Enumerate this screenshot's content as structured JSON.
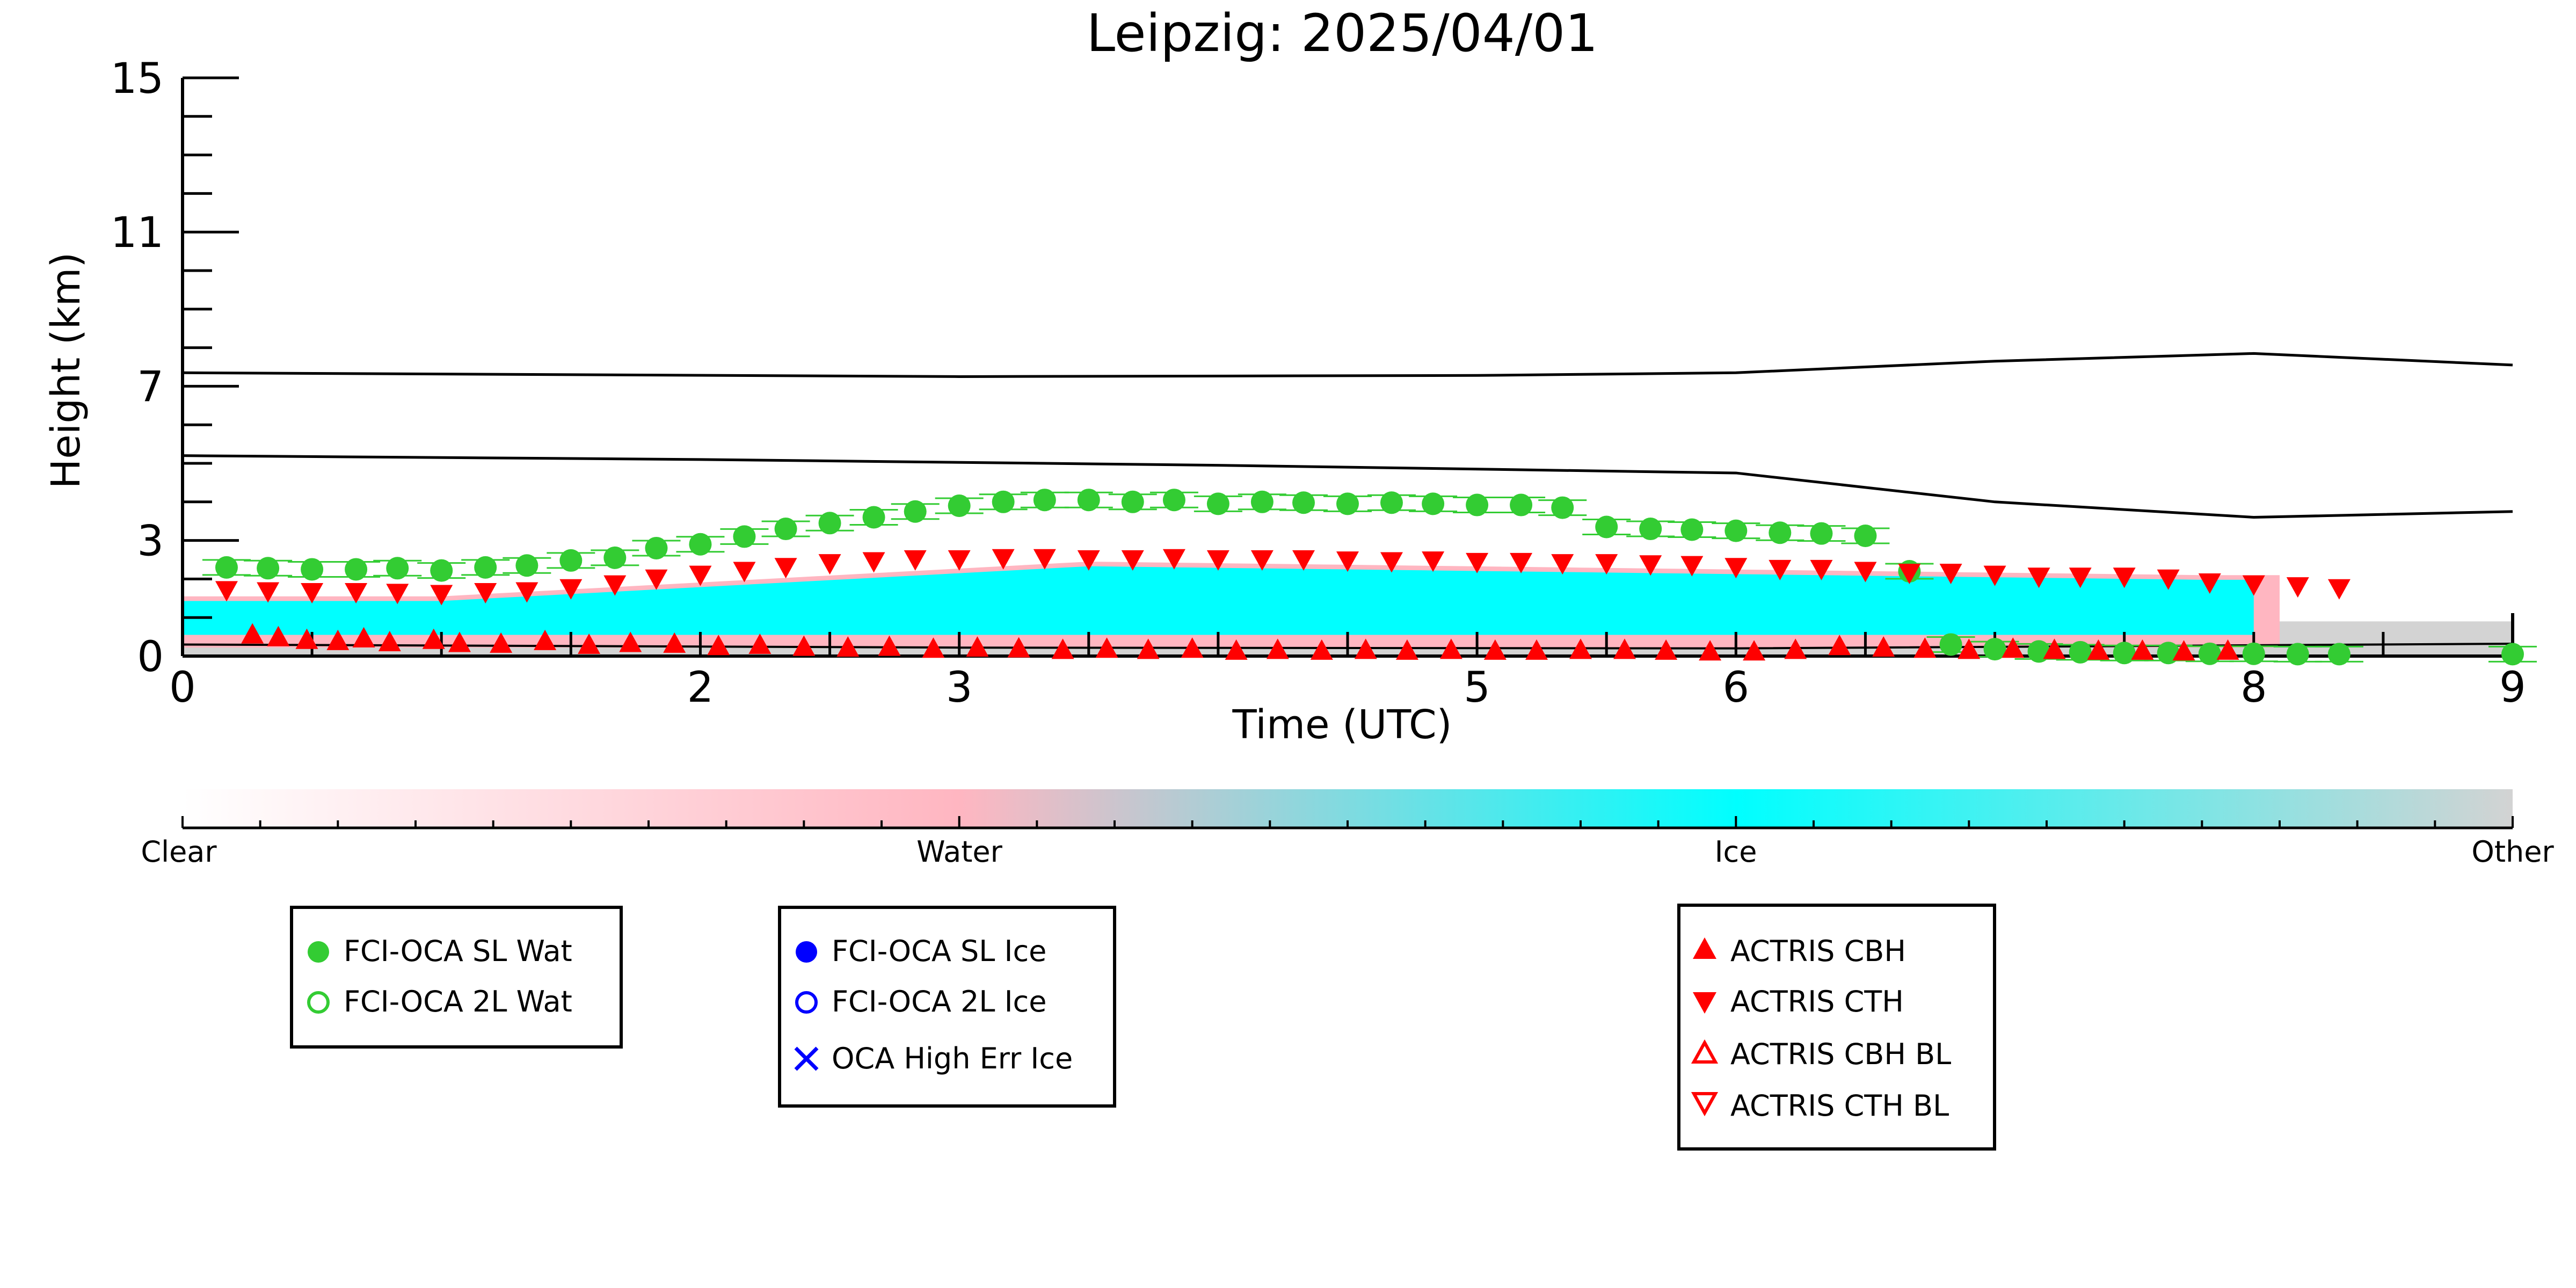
{
  "chart_data": {
    "type": "scatter",
    "title": "Leipzig: 2025/04/01",
    "xlabel": "Time (UTC)",
    "ylabel": "Height (km)",
    "xlim": [
      0,
      9
    ],
    "ylim": [
      0,
      15
    ],
    "x_ticks": [
      0,
      2,
      3,
      5,
      6,
      8,
      9
    ],
    "x_tick_labels": [
      "0",
      "2",
      "3",
      "5",
      "6",
      "8",
      "9"
    ],
    "y_ticks": [
      0,
      3,
      7,
      11,
      15
    ],
    "y_tick_labels": [
      "0",
      "3",
      "7",
      "11",
      "15"
    ],
    "colorbar": {
      "labels": [
        "Clear",
        "Water",
        "Ice",
        "Other"
      ],
      "colors": [
        "#ffffff",
        "#ffb6c1",
        "#00ffff",
        "#d3d3d3"
      ]
    },
    "reference_lines": [
      {
        "x": [
          0,
          3,
          5,
          6,
          7,
          8,
          9
        ],
        "y": [
          7.35,
          7.25,
          7.28,
          7.35,
          7.65,
          7.85,
          7.55
        ]
      },
      {
        "x": [
          0,
          2,
          4,
          6,
          7,
          8,
          9
        ],
        "y": [
          5.2,
          5.1,
          4.95,
          4.75,
          4.0,
          3.6,
          3.75
        ]
      }
    ],
    "series": [
      {
        "name": "FCI-OCA SL Wat",
        "marker": "circle-filled",
        "color": "#33cc33",
        "x": [
          0.17,
          0.33,
          0.5,
          0.67,
          0.83,
          1.0,
          1.17,
          1.33,
          1.5,
          1.67,
          1.83,
          2.0,
          2.17,
          2.33,
          2.5,
          2.67,
          2.83,
          3.0,
          3.17,
          3.33,
          3.5,
          3.67,
          3.83,
          4.0,
          4.17,
          4.33,
          4.5,
          4.67,
          4.83,
          5.0,
          5.17,
          5.33,
          5.5,
          5.67,
          5.83,
          6.0,
          6.17,
          6.33,
          6.5,
          6.67,
          6.83,
          7.0,
          7.17,
          7.33,
          7.5,
          7.67,
          7.83,
          8.0,
          8.17,
          8.33,
          9.0
        ],
        "y": [
          2.3,
          2.28,
          2.25,
          2.25,
          2.28,
          2.22,
          2.3,
          2.35,
          2.48,
          2.55,
          2.8,
          2.9,
          3.1,
          3.3,
          3.45,
          3.6,
          3.75,
          3.9,
          4.0,
          4.05,
          4.05,
          4.0,
          4.05,
          3.95,
          4.0,
          3.98,
          3.95,
          3.98,
          3.95,
          3.92,
          3.92,
          3.85,
          3.35,
          3.3,
          3.28,
          3.25,
          3.2,
          3.18,
          3.12,
          2.2,
          0.3,
          0.18,
          0.12,
          0.1,
          0.08,
          0.08,
          0.06,
          0.06,
          0.05,
          0.05,
          0.05
        ]
      },
      {
        "name": "FCI-OCA 2L Wat",
        "marker": "circle-open",
        "color": "#33cc33",
        "x": [],
        "y": []
      },
      {
        "name": "FCI-OCA SL Ice",
        "marker": "circle-filled",
        "color": "#0000ff",
        "x": [],
        "y": []
      },
      {
        "name": "FCI-OCA 2L Ice",
        "marker": "circle-open",
        "color": "#0000ff",
        "x": [],
        "y": []
      },
      {
        "name": "OCA High Err Ice",
        "marker": "x",
        "color": "#0000ff",
        "x": [],
        "y": []
      },
      {
        "name": "ACTRIS CBH",
        "marker": "triangle-up-filled",
        "color": "#ff0000",
        "x": [
          0.27,
          0.37,
          0.48,
          0.6,
          0.7,
          0.8,
          0.97,
          1.07,
          1.23,
          1.4,
          1.57,
          1.73,
          1.9,
          2.07,
          2.23,
          2.4,
          2.57,
          2.73,
          2.9,
          3.07,
          3.23,
          3.4,
          3.57,
          3.73,
          3.9,
          4.07,
          4.23,
          4.4,
          4.57,
          4.73,
          4.9,
          5.07,
          5.23,
          5.4,
          5.57,
          5.73,
          5.9,
          6.07,
          6.23,
          6.4,
          6.57,
          6.73,
          6.9,
          7.07,
          7.23,
          7.4,
          7.57,
          7.73,
          7.9
        ],
        "y": [
          0.52,
          0.45,
          0.38,
          0.35,
          0.42,
          0.32,
          0.38,
          0.3,
          0.28,
          0.35,
          0.25,
          0.3,
          0.28,
          0.22,
          0.25,
          0.2,
          0.18,
          0.2,
          0.15,
          0.18,
          0.16,
          0.12,
          0.15,
          0.12,
          0.15,
          0.1,
          0.12,
          0.1,
          0.12,
          0.1,
          0.12,
          0.1,
          0.1,
          0.12,
          0.12,
          0.1,
          0.08,
          0.08,
          0.12,
          0.22,
          0.18,
          0.15,
          0.12,
          0.15,
          0.12,
          0.1,
          0.1,
          0.08,
          0.1
        ]
      },
      {
        "name": "ACTRIS CTH",
        "marker": "triangle-down-filled",
        "color": "#ff0000",
        "x": [
          0.17,
          0.33,
          0.5,
          0.67,
          0.83,
          1.0,
          1.17,
          1.33,
          1.5,
          1.67,
          1.83,
          2.0,
          2.17,
          2.33,
          2.5,
          2.67,
          2.83,
          3.0,
          3.17,
          3.33,
          3.5,
          3.67,
          3.83,
          4.0,
          4.17,
          4.33,
          4.5,
          4.67,
          4.83,
          5.0,
          5.17,
          5.33,
          5.5,
          5.67,
          5.83,
          6.0,
          6.17,
          6.33,
          6.5,
          6.67,
          6.83,
          7.0,
          7.17,
          7.33,
          7.5,
          7.67,
          7.83,
          8.0,
          8.17,
          8.33
        ],
        "y": [
          1.75,
          1.72,
          1.7,
          1.7,
          1.68,
          1.65,
          1.7,
          1.72,
          1.8,
          1.9,
          2.05,
          2.15,
          2.25,
          2.35,
          2.45,
          2.5,
          2.55,
          2.55,
          2.58,
          2.58,
          2.55,
          2.55,
          2.58,
          2.55,
          2.55,
          2.55,
          2.52,
          2.5,
          2.52,
          2.48,
          2.48,
          2.45,
          2.45,
          2.42,
          2.4,
          2.35,
          2.3,
          2.3,
          2.25,
          2.2,
          2.2,
          2.15,
          2.1,
          2.1,
          2.1,
          2.05,
          1.95,
          1.9,
          1.85,
          1.8
        ]
      },
      {
        "name": "ACTRIS CBH BL",
        "marker": "triangle-up-open",
        "color": "#ff0000",
        "x": [],
        "y": []
      },
      {
        "name": "ACTRIS CTH BL",
        "marker": "triangle-down-open",
        "color": "#ff0000",
        "x": [],
        "y": []
      }
    ],
    "legends": [
      [
        "FCI-OCA SL Wat",
        "FCI-OCA 2L Wat"
      ],
      [
        "FCI-OCA SL Ice",
        "FCI-OCA 2L Ice",
        "OCA High Err Ice"
      ],
      [
        "ACTRIS CBH",
        "ACTRIS CTH",
        "ACTRIS CBH BL",
        "ACTRIS CTH BL"
      ]
    ]
  }
}
